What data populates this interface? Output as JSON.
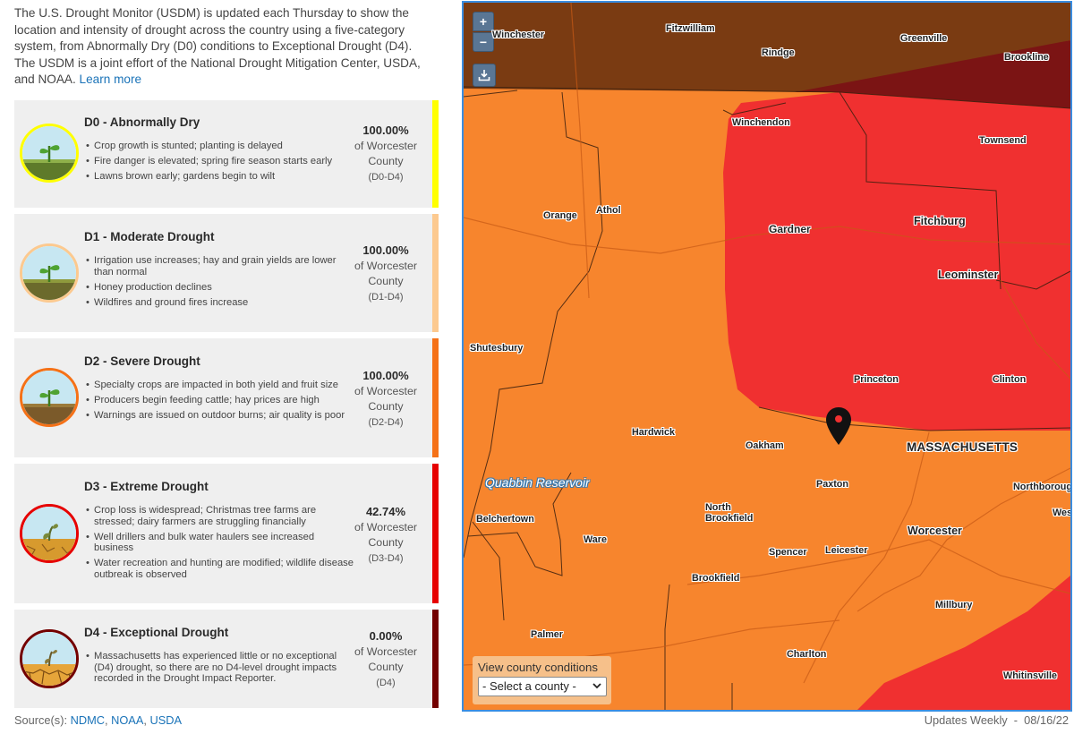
{
  "intro": {
    "text": "The U.S. Drought Monitor (USDM) is updated each Thursday to show the location and intensity of drought across the country using a five-category system, from Abnormally Dry (D0) conditions to Exceptional Drought (D4). The USDM is a joint effort of the National Drought Mitigation Center, USDA, and NOAA.",
    "link": "Learn more"
  },
  "levels": [
    {
      "title": "D0 - Abnormally Dry",
      "bullets": [
        "Crop growth is stunted; planting is delayed",
        "Fire danger is elevated; spring fire season starts early",
        "Lawns brown early; gardens begin to wilt"
      ],
      "pct": "100.00%",
      "of": "of Worcester",
      "county": "County",
      "code": "(D0-D4)",
      "color": "#ffff00",
      "icon": "sprout-dry-icon"
    },
    {
      "title": "D1 - Moderate Drought",
      "bullets": [
        "Irrigation use increases; hay and grain yields are lower than normal",
        "Honey production declines",
        "Wildfires and ground fires increase"
      ],
      "pct": "100.00%",
      "of": "of Worcester",
      "county": "County",
      "code": "(D1-D4)",
      "color": "#fcd37f",
      "icon": "sprout-moderate-icon"
    },
    {
      "title": "D2 - Severe Drought",
      "bullets": [
        "Specialty crops are impacted in both yield and fruit size",
        "Producers begin feeding cattle; hay prices are high",
        "Warnings are issued on outdoor burns; air quality is poor"
      ],
      "pct": "100.00%",
      "of": "of Worcester",
      "county": "County",
      "code": "(D2-D4)",
      "color": "#ffaa00",
      "icon": "sprout-severe-icon"
    },
    {
      "title": "D3 - Extreme Drought",
      "bullets": [
        "Crop loss is widespread; Christmas tree farms are stressed; dairy farmers are struggling financially",
        "Well drillers and bulk water haulers see increased business",
        "Water recreation and hunting are modified; wildlife disease outbreak is observed"
      ],
      "pct": "42.74%",
      "of": "of Worcester",
      "county": "County",
      "code": "(D3-D4)",
      "color": "#e60000",
      "icon": "wilted-sprout-icon"
    },
    {
      "title": "D4 - Exceptional Drought",
      "bullets": [
        "Massachusetts has experienced little or no exceptional (D4) drought, so there are no D4-level drought impacts recorded in the Drought Impact Reporter."
      ],
      "pct": "0.00%",
      "of": "of Worcester",
      "county": "County",
      "code": "(D4)",
      "color": "#730000",
      "icon": "dead-sprout-icon"
    }
  ],
  "source": {
    "label": "Source(s):",
    "links": [
      "NDMC",
      "NOAA",
      "USDA"
    ]
  },
  "updates": "Updates Weekly  -  08/16/22",
  "map": {
    "zoom_in": "+",
    "zoom_out": "−",
    "state_label": "MASSACHUSETTS",
    "water_label": "Quabbin Reservoir",
    "places": [
      "Winchester",
      "Fitzwilliam",
      "Rindge",
      "Greenville",
      "Brookline",
      "Winchendon",
      "Townsend",
      "Orange",
      "Athol",
      "Gardner",
      "Fitchburg",
      "Leominster",
      "Shutesbury",
      "Princeton",
      "Clinton",
      "Hardwick",
      "Oakham",
      "Paxton",
      "Northborough",
      "North Brookfield",
      "Belchertown",
      "Ware",
      "Spencer",
      "Leicester",
      "Worcester",
      "West",
      "Brookfield",
      "Millbury",
      "Palmer",
      "Charlton",
      "Whitinsville"
    ],
    "county_box": {
      "label": "View county conditions",
      "select_value": "- Select a county -"
    }
  }
}
